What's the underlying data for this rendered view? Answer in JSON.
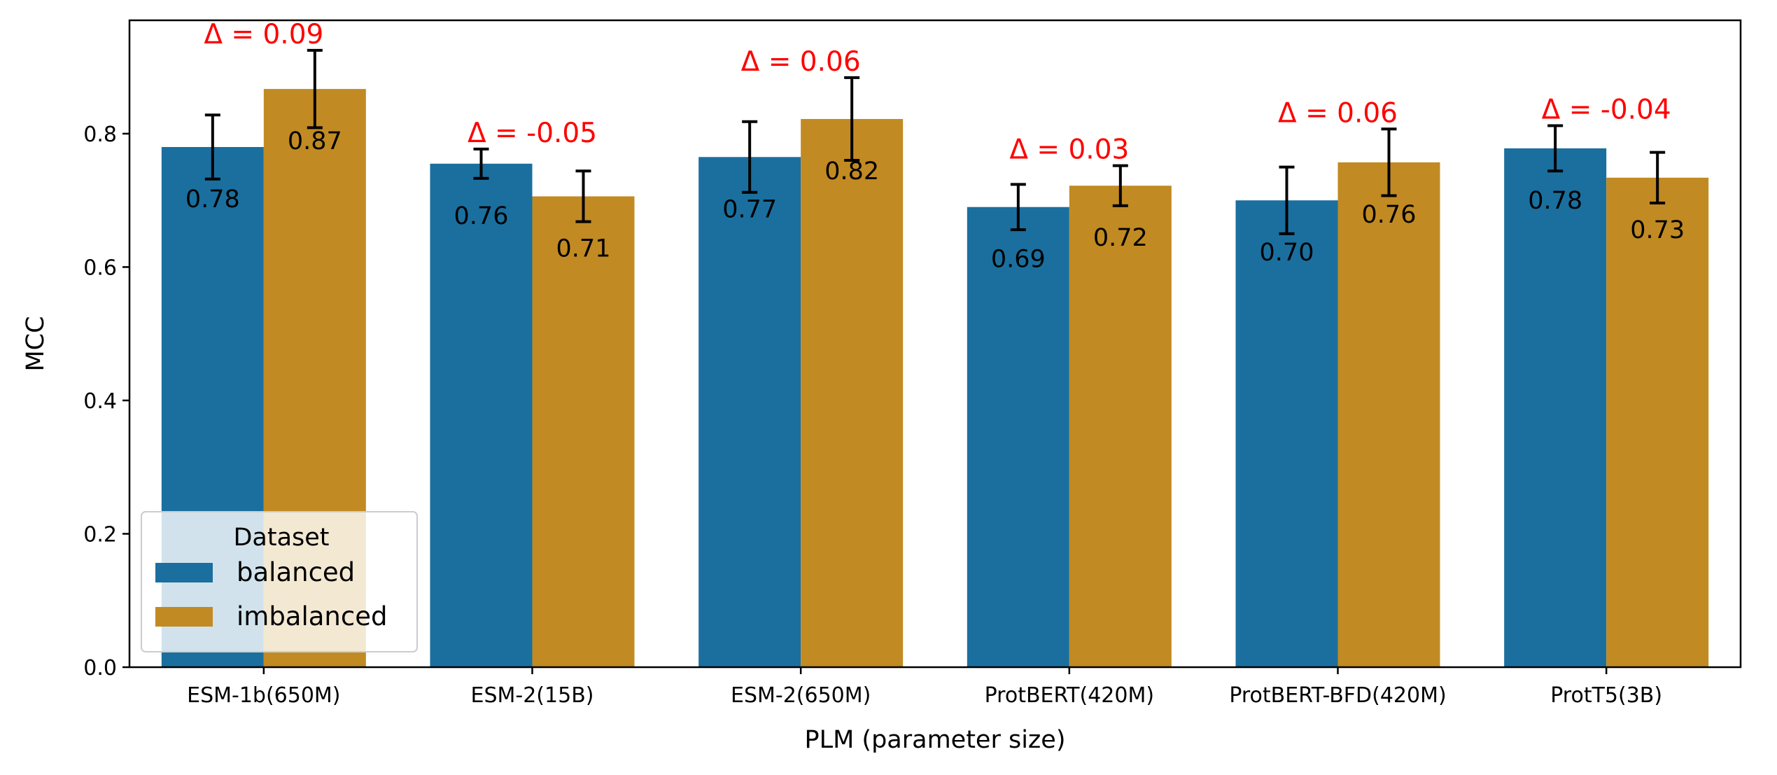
{
  "chart_data": {
    "type": "bar",
    "categories": [
      "ESM-1b(650M)",
      "ESM-2(15B)",
      "ESM-2(650M)",
      "ProtBERT(420M)",
      "ProtBERT-BFD(420M)",
      "ProtT5(3B)"
    ],
    "series": [
      {
        "name": "balanced",
        "color": "#1a6f9f",
        "values": [
          0.78,
          0.755,
          0.765,
          0.69,
          0.7,
          0.778
        ],
        "error": [
          0.048,
          0.022,
          0.053,
          0.034,
          0.05,
          0.034
        ],
        "value_labels": [
          "0.78",
          "0.76",
          "0.77",
          "0.69",
          "0.70",
          "0.78"
        ]
      },
      {
        "name": "imbalanced",
        "color": "#c18a22",
        "values": [
          0.867,
          0.706,
          0.822,
          0.722,
          0.757,
          0.734
        ],
        "error": [
          0.058,
          0.038,
          0.062,
          0.03,
          0.05,
          0.038
        ],
        "value_labels": [
          "0.87",
          "0.71",
          "0.82",
          "0.72",
          "0.76",
          "0.73"
        ]
      }
    ],
    "annotations": [
      "Δ = 0.09",
      "Δ = -0.05",
      "Δ = 0.06",
      "Δ = 0.03",
      "Δ = 0.06",
      "Δ = -0.04"
    ],
    "annotation_color": "#ff0000",
    "xlabel": "PLM (parameter size)",
    "ylabel": "MCC",
    "ylim": [
      0,
      0.97
    ],
    "yticks": [
      0.0,
      0.2,
      0.4,
      0.6,
      0.8
    ],
    "ytick_labels": [
      "0.0",
      "0.2",
      "0.4",
      "0.6",
      "0.8"
    ],
    "grid": false,
    "legend": {
      "title": "Dataset",
      "placement": "lower-left",
      "entries": [
        "balanced",
        "imbalanced"
      ]
    }
  }
}
